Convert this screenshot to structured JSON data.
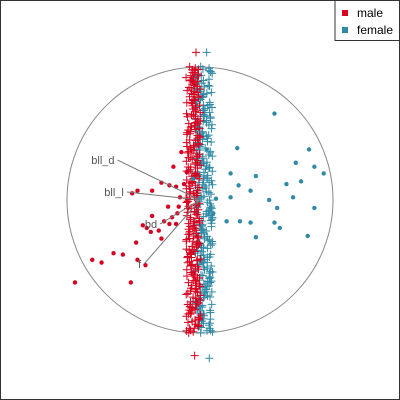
{
  "chart_data": {
    "type": "scatter",
    "description_free": true,
    "legend": {
      "placement": "top-right",
      "entries": [
        {
          "label": "male",
          "color": "#d7001e"
        },
        {
          "label": "female",
          "color": "#2e8aa6"
        }
      ]
    },
    "xlim": [
      -1.05,
      1.05
    ],
    "ylim": [
      -1.05,
      1.05
    ],
    "circle": {
      "center": [
        0,
        0
      ],
      "radius": 1
    },
    "variables": [
      {
        "label": "bll_d",
        "x": -0.62,
        "y": 0.3
      },
      {
        "label": "bll_l",
        "x": -0.55,
        "y": 0.06
      },
      {
        "label": "bd",
        "x": -0.3,
        "y": -0.18
      },
      {
        "label": "f",
        "x": -0.42,
        "y": -0.48
      }
    ],
    "series": [
      {
        "name": "male",
        "color": "#d7001e",
        "points": [
          [
            -0.94,
            -0.62
          ],
          [
            -0.81,
            -0.45
          ],
          [
            -0.74,
            -0.47
          ],
          [
            -0.58,
            -0.41
          ],
          [
            -0.47,
            -0.45
          ],
          [
            -0.41,
            -0.49
          ],
          [
            -0.52,
            -0.62
          ],
          [
            -0.65,
            -0.4
          ],
          [
            -0.48,
            -0.32
          ],
          [
            -0.29,
            -0.29
          ],
          [
            -0.31,
            -0.23
          ],
          [
            -0.37,
            -0.24
          ],
          [
            -0.27,
            -0.16
          ],
          [
            -0.23,
            -0.18
          ],
          [
            -0.18,
            -0.18
          ],
          [
            -0.4,
            -0.21
          ],
          [
            -0.36,
            -0.12
          ],
          [
            -0.43,
            -0.19
          ],
          [
            -0.17,
            -0.1
          ],
          [
            -0.21,
            -0.13
          ],
          [
            -0.16,
            -0.05
          ],
          [
            -0.24,
            -0.05
          ],
          [
            -0.15,
            0.02
          ],
          [
            -0.18,
            0.1
          ],
          [
            -0.23,
            0.11
          ],
          [
            -0.36,
            0.07
          ],
          [
            -0.29,
            0.13
          ],
          [
            -0.2,
            0.25
          ],
          [
            -0.14,
            0.36
          ],
          [
            -0.12,
            0.12
          ],
          [
            -0.09,
            -0.06
          ],
          [
            -0.1,
            0.21
          ],
          [
            -0.47,
            0.07
          ],
          [
            -0.51,
            0.05
          ]
        ]
      },
      {
        "name": "female",
        "color": "#2e8aa6",
        "points": [
          [
            0.56,
            0.65
          ],
          [
            0.28,
            0.39
          ],
          [
            0.82,
            0.38
          ],
          [
            0.93,
            0.2
          ],
          [
            0.86,
            0.25
          ],
          [
            0.72,
            0.28
          ],
          [
            0.76,
            0.14
          ],
          [
            0.65,
            0.12
          ],
          [
            0.7,
            0.02
          ],
          [
            0.58,
            -0.06
          ],
          [
            0.52,
            0.0
          ],
          [
            0.56,
            -0.17
          ],
          [
            0.42,
            0.18
          ],
          [
            0.38,
            0.07
          ],
          [
            0.29,
            0.11
          ],
          [
            0.23,
            0.2
          ],
          [
            0.23,
            0.02
          ],
          [
            0.1,
            -0.1
          ],
          [
            0.12,
            0.01
          ],
          [
            0.2,
            -0.16
          ],
          [
            0.3,
            -0.16
          ],
          [
            0.42,
            -0.28
          ],
          [
            0.6,
            -0.21
          ],
          [
            0.81,
            -0.27
          ],
          [
            0.86,
            -0.06
          ],
          [
            0.38,
            -0.17
          ],
          [
            -0.05,
            0.16
          ],
          [
            0.05,
            0.38
          ]
        ]
      }
    ],
    "cross_band": {
      "male": {
        "color": "#d7001e",
        "x_center": -0.05,
        "x_spread": 0.055
      },
      "female": {
        "color": "#2e8aa6",
        "x_center": 0.03,
        "x_spread": 0.065
      },
      "y_range": [
        -1.0,
        1.0
      ]
    }
  }
}
